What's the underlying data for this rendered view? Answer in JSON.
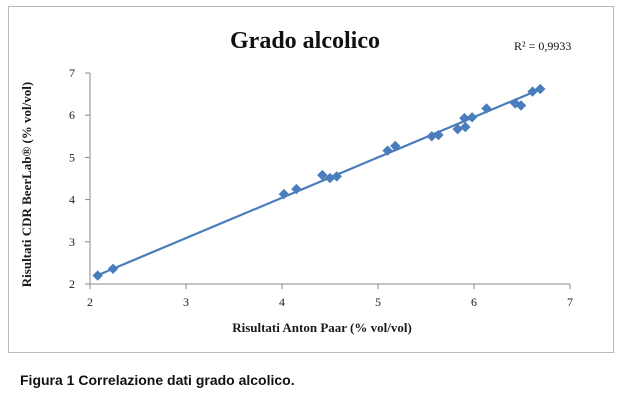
{
  "chart_data": {
    "type": "scatter",
    "title": "Grado alcolico",
    "xlabel": "Risultati Anton Paar (% vol/vol)",
    "ylabel": "Risultati CDR BeerLab® (% vol/vol)",
    "xlim": [
      2,
      7
    ],
    "ylim": [
      2,
      7
    ],
    "xticks": [
      "2",
      "3",
      "4",
      "5",
      "6",
      "7"
    ],
    "yticks": [
      "2",
      "3",
      "4",
      "5",
      "6",
      "7"
    ],
    "grid": false,
    "legend": "none",
    "marker": "diamond",
    "color": "#4a7dbb",
    "points": [
      {
        "x": 2.08,
        "y": 2.2
      },
      {
        "x": 2.24,
        "y": 2.36
      },
      {
        "x": 4.02,
        "y": 4.13
      },
      {
        "x": 4.15,
        "y": 4.25
      },
      {
        "x": 4.42,
        "y": 4.58
      },
      {
        "x": 4.5,
        "y": 4.51
      },
      {
        "x": 4.57,
        "y": 4.55
      },
      {
        "x": 5.1,
        "y": 5.16
      },
      {
        "x": 5.18,
        "y": 5.27
      },
      {
        "x": 5.56,
        "y": 5.5
      },
      {
        "x": 5.63,
        "y": 5.53
      },
      {
        "x": 5.83,
        "y": 5.67
      },
      {
        "x": 5.91,
        "y": 5.72
      },
      {
        "x": 5.9,
        "y": 5.93
      },
      {
        "x": 5.98,
        "y": 5.95
      },
      {
        "x": 6.13,
        "y": 6.16
      },
      {
        "x": 6.43,
        "y": 6.28
      },
      {
        "x": 6.49,
        "y": 6.23
      },
      {
        "x": 6.61,
        "y": 6.56
      },
      {
        "x": 6.69,
        "y": 6.62
      }
    ],
    "trendline": {
      "type": "linear",
      "x_range": [
        2.08,
        6.69
      ],
      "slope": 0.956,
      "intercept": 0.22
    },
    "annotations": [
      {
        "text": "R² = 0,9933"
      }
    ]
  },
  "caption": "Figura 1 Correlazione dati grado alcolico."
}
